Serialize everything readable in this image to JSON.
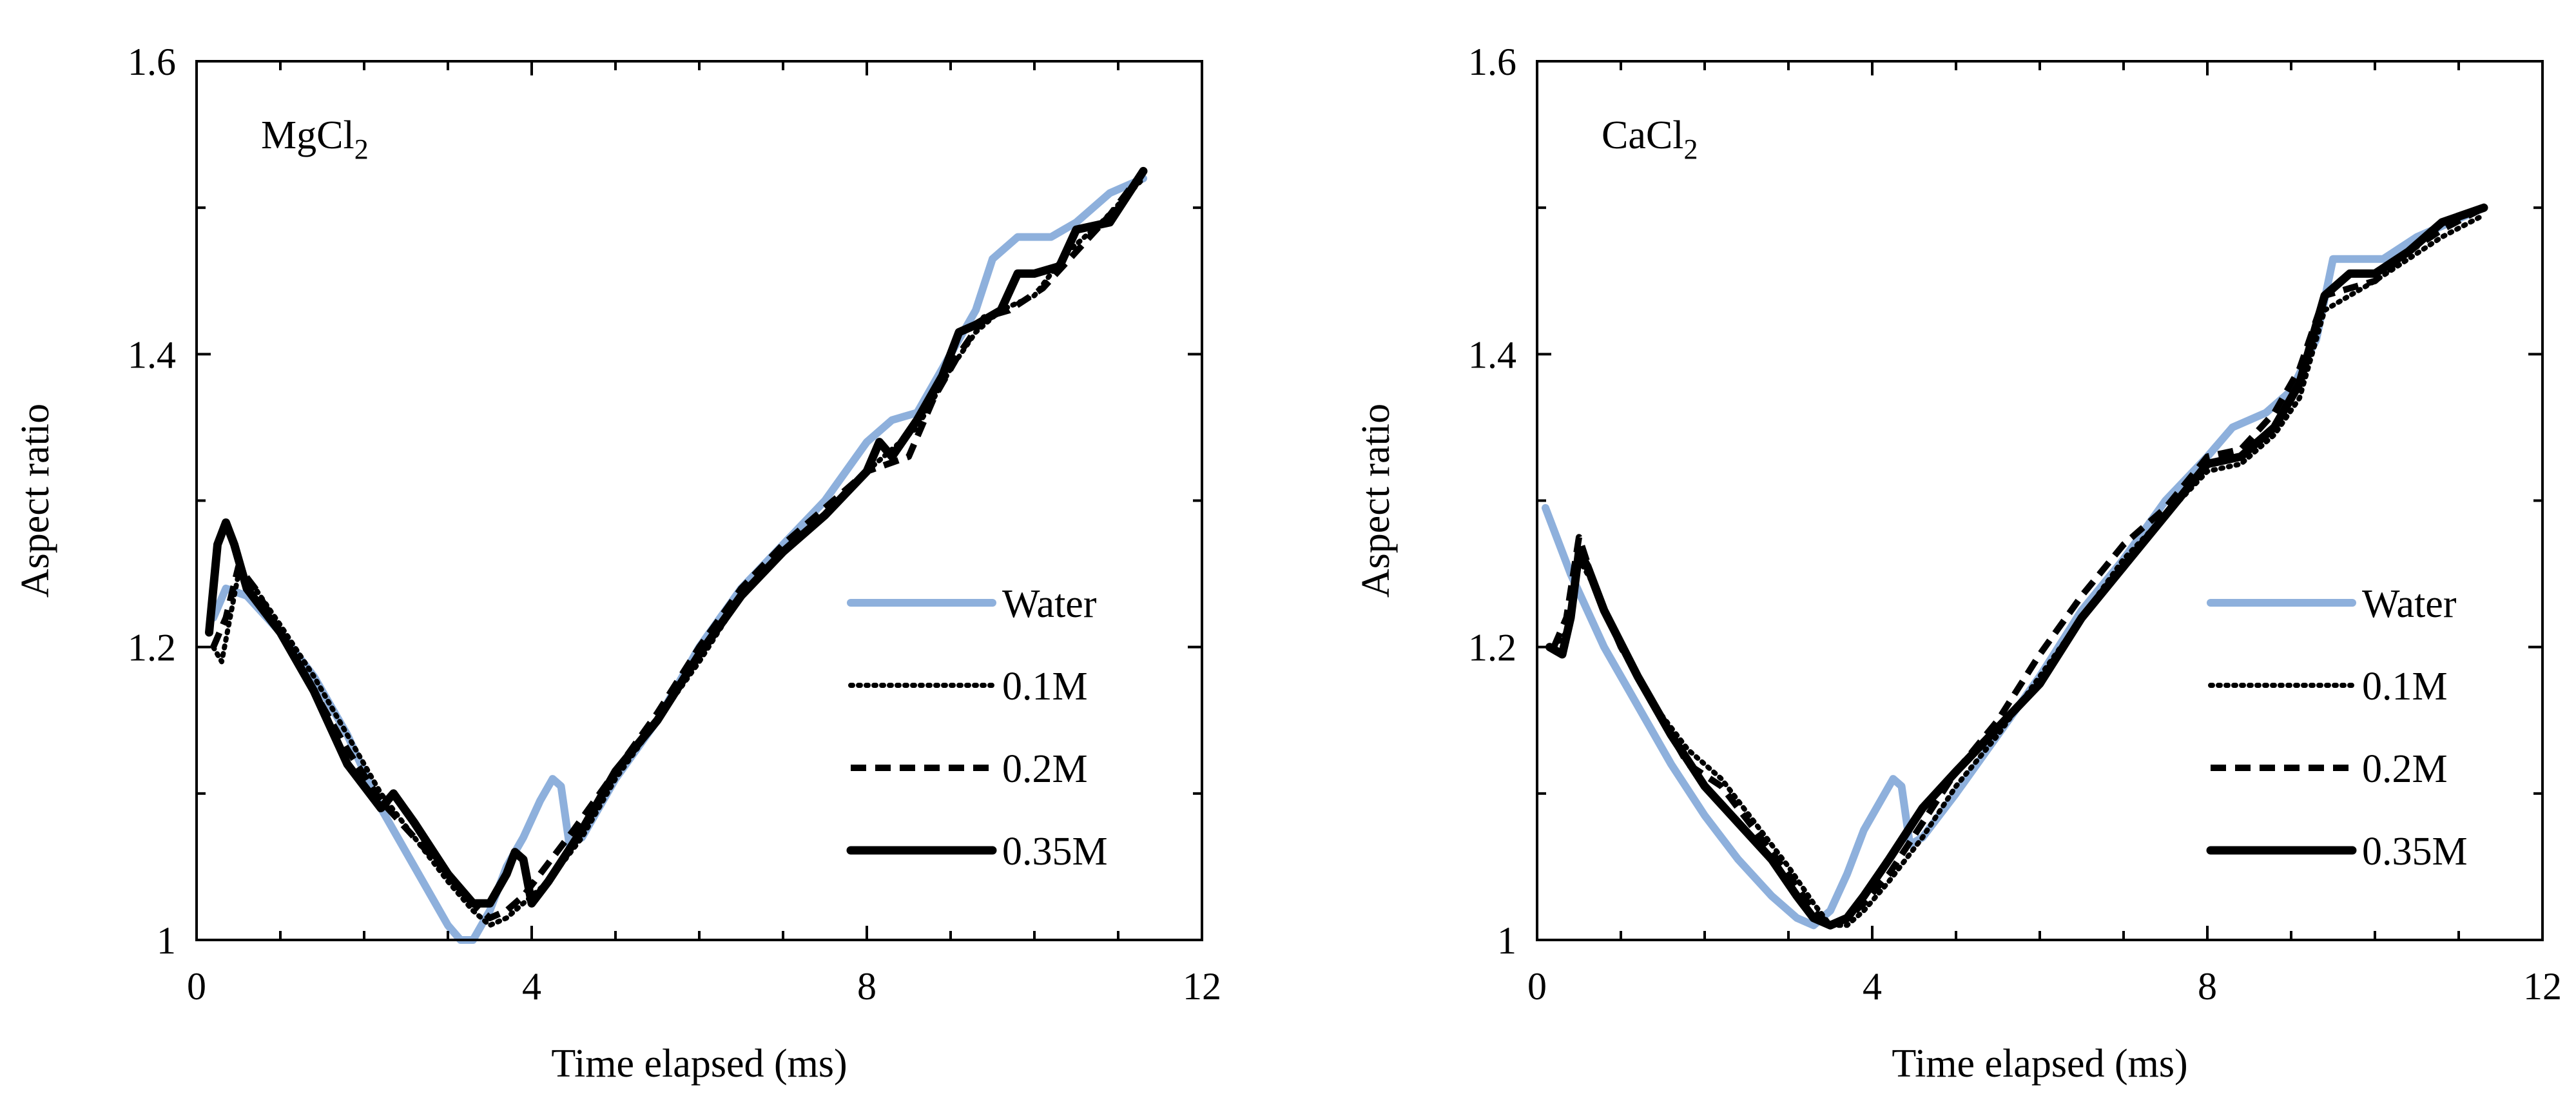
{
  "chart_data": [
    {
      "type": "line",
      "panel_label": {
        "main": "MgCl",
        "subscript": "2"
      },
      "xlabel": "Time elapsed (ms)",
      "ylabel": "Aspect ratio",
      "xlim": [
        0,
        12
      ],
      "ylim": [
        1,
        1.6
      ],
      "xticks": [
        0,
        4,
        8,
        12
      ],
      "xtick_labels": [
        "0",
        "4",
        "8",
        "12"
      ],
      "yticks": [
        1,
        1.2,
        1.4,
        1.6
      ],
      "ytick_labels": [
        "1",
        "1.2",
        "1.4",
        "1.6"
      ],
      "legend_position": "center-right",
      "series": [
        {
          "name": "Water",
          "color": "#8eb0dc",
          "style": "solid-thick",
          "x": [
            0.2,
            0.35,
            0.6,
            1.0,
            1.4,
            1.8,
            2.2,
            2.6,
            3.0,
            3.15,
            3.3,
            3.5,
            3.7,
            3.9,
            4.1,
            4.25,
            4.35,
            4.45,
            4.6,
            5.0,
            5.5,
            6.0,
            6.5,
            7.0,
            7.5,
            8.0,
            8.3,
            8.6,
            9.0,
            9.3,
            9.5,
            9.8,
            10.2,
            10.5,
            10.9,
            11.3
          ],
          "y": [
            1.22,
            1.24,
            1.235,
            1.21,
            1.18,
            1.14,
            1.09,
            1.05,
            1.01,
            1.0,
            1.0,
            1.02,
            1.05,
            1.07,
            1.095,
            1.11,
            1.105,
            1.065,
            1.07,
            1.11,
            1.15,
            1.2,
            1.24,
            1.27,
            1.3,
            1.34,
            1.355,
            1.36,
            1.4,
            1.43,
            1.465,
            1.48,
            1.48,
            1.49,
            1.51,
            1.52
          ]
        },
        {
          "name": "0.1M",
          "color": "#000000",
          "style": "dotted",
          "x": [
            0.2,
            0.3,
            0.4,
            0.5,
            0.7,
            1.0,
            1.4,
            1.8,
            2.2,
            2.6,
            3.0,
            3.3,
            3.5,
            3.7,
            3.9,
            4.2,
            4.6,
            5.0,
            5.5,
            6.0,
            6.5,
            7.0,
            7.5,
            8.0,
            8.3,
            8.6,
            9.0,
            9.3,
            9.6,
            10.0,
            10.4,
            10.8,
            11.3
          ],
          "y": [
            1.2,
            1.19,
            1.22,
            1.25,
            1.24,
            1.215,
            1.18,
            1.14,
            1.1,
            1.07,
            1.04,
            1.02,
            1.01,
            1.015,
            1.025,
            1.04,
            1.07,
            1.11,
            1.15,
            1.19,
            1.235,
            1.265,
            1.29,
            1.32,
            1.335,
            1.35,
            1.39,
            1.415,
            1.43,
            1.44,
            1.47,
            1.49,
            1.52
          ]
        },
        {
          "name": "0.2M",
          "color": "#000000",
          "style": "dashed",
          "x": [
            0.2,
            0.35,
            0.5,
            0.7,
            1.0,
            1.4,
            1.8,
            2.2,
            2.6,
            3.0,
            3.3,
            3.5,
            3.7,
            3.9,
            4.1,
            4.5,
            5.0,
            5.5,
            6.0,
            6.5,
            7.0,
            7.5,
            8.0,
            8.5,
            8.8,
            9.1,
            9.4,
            9.7,
            10.1,
            10.5,
            10.9,
            11.3
          ],
          "y": [
            1.2,
            1.22,
            1.255,
            1.24,
            1.21,
            1.17,
            1.13,
            1.095,
            1.07,
            1.045,
            1.025,
            1.015,
            1.02,
            1.03,
            1.045,
            1.075,
            1.115,
            1.155,
            1.2,
            1.24,
            1.27,
            1.295,
            1.32,
            1.33,
            1.37,
            1.4,
            1.425,
            1.43,
            1.445,
            1.47,
            1.495,
            1.525
          ]
        },
        {
          "name": "0.35M",
          "color": "#000000",
          "style": "solid",
          "x": [
            0.15,
            0.25,
            0.35,
            0.45,
            0.6,
            1.0,
            1.4,
            1.8,
            2.2,
            2.35,
            2.6,
            3.0,
            3.3,
            3.5,
            3.7,
            3.8,
            3.9,
            4.0,
            4.2,
            4.6,
            5.0,
            5.5,
            6.0,
            6.5,
            7.0,
            7.5,
            8.0,
            8.15,
            8.3,
            8.6,
            8.9,
            9.1,
            9.3,
            9.6,
            9.8,
            10.0,
            10.3,
            10.5,
            10.9,
            11.3
          ],
          "y": [
            1.21,
            1.27,
            1.285,
            1.27,
            1.24,
            1.21,
            1.17,
            1.12,
            1.09,
            1.1,
            1.08,
            1.045,
            1.025,
            1.025,
            1.045,
            1.06,
            1.055,
            1.025,
            1.04,
            1.075,
            1.115,
            1.15,
            1.195,
            1.235,
            1.265,
            1.29,
            1.32,
            1.34,
            1.33,
            1.355,
            1.385,
            1.415,
            1.42,
            1.43,
            1.455,
            1.455,
            1.46,
            1.485,
            1.49,
            1.525
          ]
        }
      ]
    },
    {
      "type": "line",
      "panel_label": {
        "main": "CaCl",
        "subscript": "2"
      },
      "xlabel": "Time elapsed (ms)",
      "ylabel": "Aspect ratio",
      "xlim": [
        0,
        12
      ],
      "ylim": [
        1,
        1.6
      ],
      "xticks": [
        0,
        4,
        8,
        12
      ],
      "xtick_labels": [
        "0",
        "4",
        "8",
        "12"
      ],
      "yticks": [
        1,
        1.2,
        1.4,
        1.6
      ],
      "ytick_labels": [
        "1",
        "1.2",
        "1.4",
        "1.6"
      ],
      "legend_position": "center-right",
      "series": [
        {
          "name": "Water",
          "color": "#8eb0dc",
          "style": "solid-thick",
          "x": [
            0.1,
            0.4,
            0.8,
            1.2,
            1.6,
            2.0,
            2.4,
            2.8,
            3.1,
            3.3,
            3.5,
            3.7,
            3.9,
            4.1,
            4.25,
            4.35,
            4.45,
            4.6,
            5.0,
            5.5,
            6.0,
            6.5,
            7.0,
            7.5,
            8.0,
            8.3,
            8.7,
            9.0,
            9.3,
            9.5,
            9.8,
            10.1,
            10.5,
            10.9,
            11.3
          ],
          "y": [
            1.295,
            1.25,
            1.2,
            1.16,
            1.12,
            1.085,
            1.055,
            1.03,
            1.015,
            1.01,
            1.02,
            1.045,
            1.075,
            1.095,
            1.11,
            1.105,
            1.065,
            1.07,
            1.1,
            1.14,
            1.18,
            1.225,
            1.26,
            1.3,
            1.33,
            1.35,
            1.36,
            1.375,
            1.41,
            1.465,
            1.465,
            1.465,
            1.48,
            1.49,
            1.5
          ]
        },
        {
          "name": "0.1M",
          "color": "#000000",
          "style": "dotted",
          "x": [
            0.2,
            0.35,
            0.5,
            0.7,
            1.0,
            1.4,
            1.8,
            2.2,
            2.6,
            3.0,
            3.3,
            3.5,
            3.7,
            3.9,
            4.2,
            4.6,
            5.0,
            5.5,
            6.0,
            6.5,
            7.0,
            7.5,
            8.0,
            8.4,
            8.8,
            9.1,
            9.4,
            9.7,
            10.0,
            10.4,
            10.8,
            11.3
          ],
          "y": [
            1.2,
            1.21,
            1.26,
            1.24,
            1.2,
            1.16,
            1.13,
            1.11,
            1.08,
            1.05,
            1.025,
            1.01,
            1.01,
            1.02,
            1.04,
            1.07,
            1.105,
            1.14,
            1.18,
            1.22,
            1.26,
            1.29,
            1.32,
            1.325,
            1.345,
            1.37,
            1.43,
            1.44,
            1.45,
            1.465,
            1.48,
            1.495
          ]
        },
        {
          "name": "0.2M",
          "color": "#000000",
          "style": "dashed",
          "x": [
            0.2,
            0.35,
            0.5,
            0.7,
            1.0,
            1.4,
            1.8,
            2.2,
            2.6,
            3.0,
            3.3,
            3.5,
            3.7,
            3.9,
            4.2,
            4.6,
            5.0,
            5.5,
            6.0,
            6.5,
            7.0,
            7.5,
            8.0,
            8.4,
            8.8,
            9.1,
            9.4,
            9.7,
            10.0,
            10.4,
            10.8,
            11.3
          ],
          "y": [
            1.2,
            1.22,
            1.275,
            1.24,
            1.2,
            1.16,
            1.12,
            1.105,
            1.075,
            1.045,
            1.02,
            1.01,
            1.015,
            1.025,
            1.045,
            1.08,
            1.115,
            1.15,
            1.195,
            1.235,
            1.27,
            1.295,
            1.33,
            1.335,
            1.36,
            1.39,
            1.44,
            1.445,
            1.45,
            1.47,
            1.485,
            1.5
          ]
        },
        {
          "name": "0.35M",
          "color": "#000000",
          "style": "solid",
          "x": [
            0.15,
            0.3,
            0.4,
            0.5,
            0.6,
            0.8,
            1.2,
            1.6,
            2.0,
            2.4,
            2.8,
            3.1,
            3.3,
            3.5,
            3.7,
            3.9,
            4.2,
            4.6,
            5.0,
            5.5,
            6.0,
            6.5,
            7.0,
            7.5,
            8.0,
            8.4,
            8.8,
            9.1,
            9.4,
            9.7,
            10.0,
            10.4,
            10.8,
            11.3
          ],
          "y": [
            1.2,
            1.195,
            1.22,
            1.265,
            1.255,
            1.225,
            1.18,
            1.14,
            1.105,
            1.08,
            1.055,
            1.03,
            1.015,
            1.01,
            1.015,
            1.03,
            1.055,
            1.09,
            1.115,
            1.145,
            1.175,
            1.22,
            1.255,
            1.29,
            1.325,
            1.33,
            1.35,
            1.38,
            1.44,
            1.455,
            1.455,
            1.47,
            1.49,
            1.5
          ]
        }
      ]
    }
  ]
}
